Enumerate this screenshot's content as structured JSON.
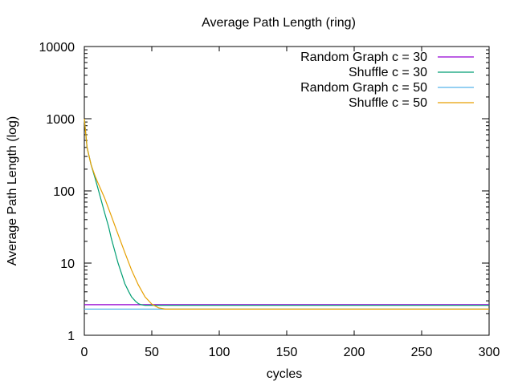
{
  "chart_data": {
    "type": "line",
    "title": "Average Path Length (ring)",
    "xlabel": "cycles",
    "ylabel": "Average Path Length (log)",
    "xlim": [
      0,
      300
    ],
    "ylim": [
      1,
      10000
    ],
    "yscale": "log",
    "grid": false,
    "legend_position": "top-right",
    "xticks": [
      "0",
      "50",
      "100",
      "150",
      "200",
      "250",
      "300"
    ],
    "yticks": [
      "1",
      "10",
      "100",
      "1000",
      "10000"
    ],
    "series": [
      {
        "name": "Random Graph c = 30",
        "color": "#9400d3",
        "x": [
          0,
          300
        ],
        "y": [
          2.65,
          2.65
        ]
      },
      {
        "name": "Shuffle c = 30",
        "color": "#009e73",
        "x": [
          0,
          2,
          5,
          8,
          10,
          12,
          15,
          18,
          20,
          22,
          25,
          28,
          30,
          33,
          35,
          38,
          40,
          42,
          45,
          50,
          60,
          80,
          100,
          150,
          200,
          250,
          300
        ],
        "y": [
          1000,
          400,
          230,
          150,
          110,
          80,
          50,
          32,
          22,
          16,
          10,
          6.8,
          5.2,
          4.0,
          3.4,
          2.95,
          2.75,
          2.65,
          2.6,
          2.6,
          2.6,
          2.6,
          2.6,
          2.6,
          2.6,
          2.6,
          2.6
        ]
      },
      {
        "name": "Random Graph c = 50",
        "color": "#56b4e9",
        "x": [
          0,
          300
        ],
        "y": [
          2.3,
          2.3
        ]
      },
      {
        "name": "Shuffle c = 50",
        "color": "#e69f00",
        "x": [
          0,
          2,
          5,
          8,
          10,
          15,
          20,
          25,
          30,
          35,
          40,
          45,
          50,
          55,
          60,
          70,
          80,
          100,
          120,
          150,
          200,
          250,
          300
        ],
        "y": [
          1000,
          400,
          230,
          160,
          130,
          80,
          45,
          25,
          14,
          8,
          5,
          3.4,
          2.7,
          2.4,
          2.3,
          2.3,
          2.3,
          2.3,
          2.3,
          2.3,
          2.3,
          2.3,
          2.3
        ]
      }
    ]
  }
}
